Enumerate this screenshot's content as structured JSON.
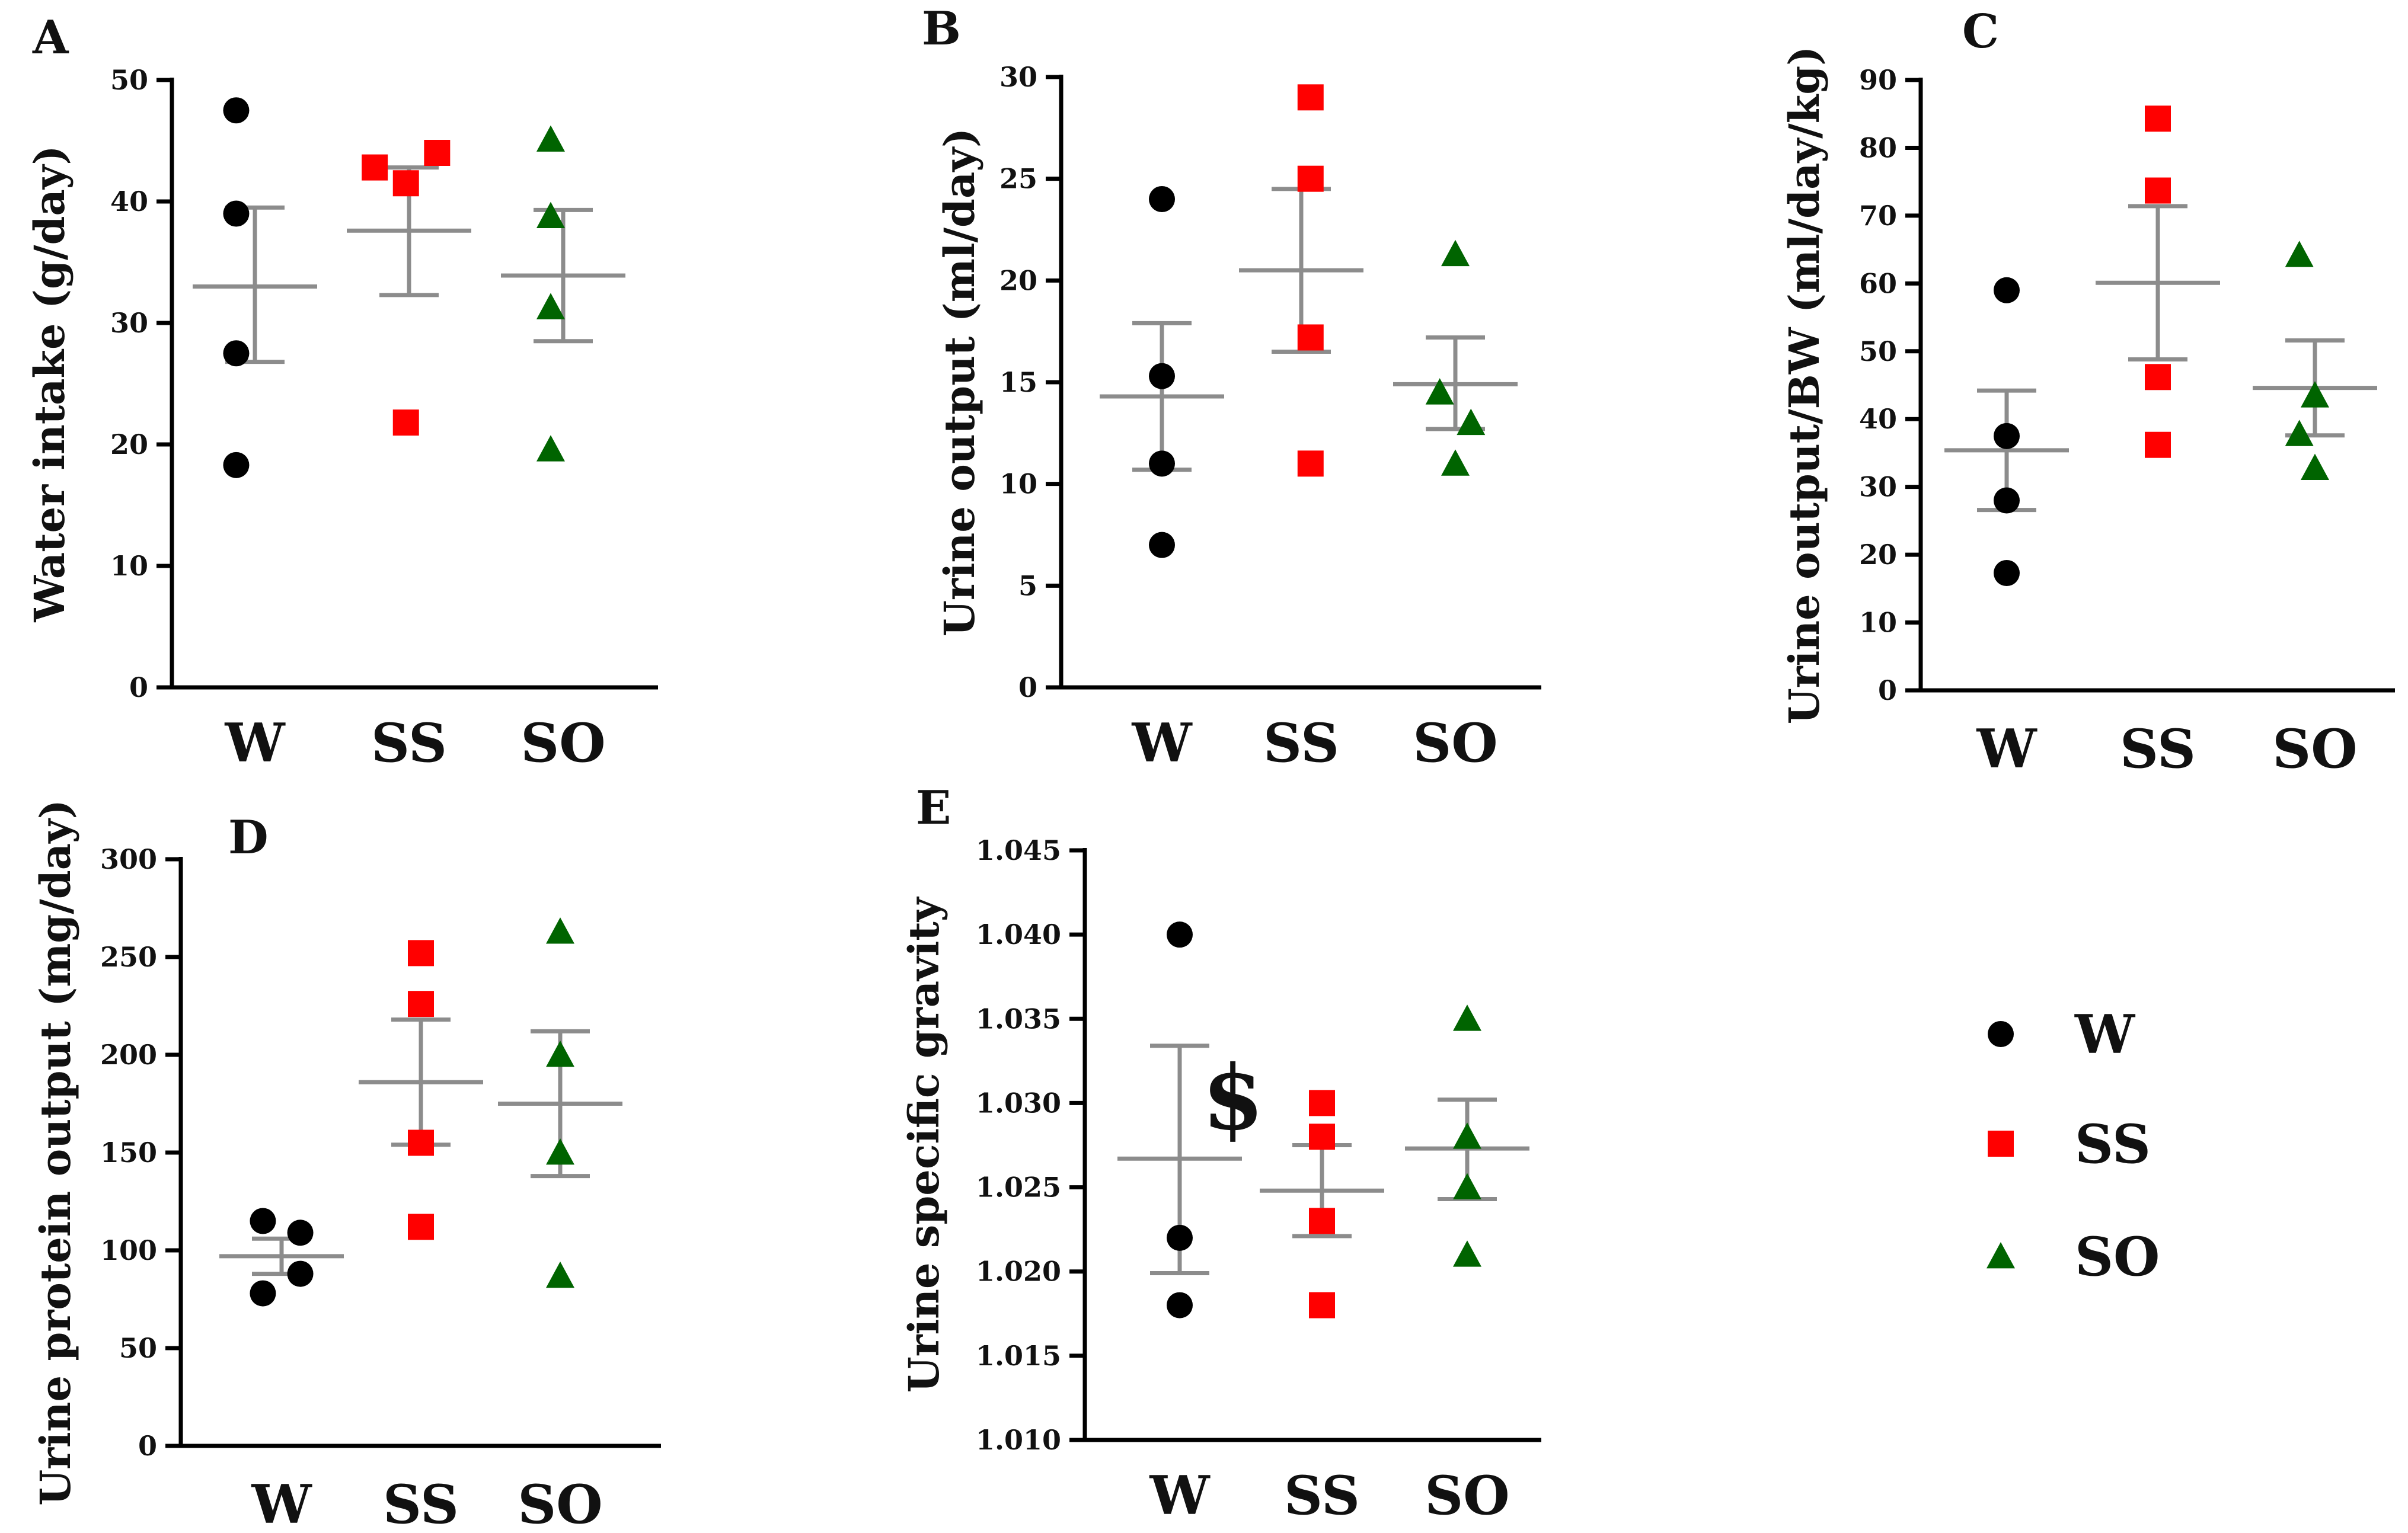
{
  "colors": {
    "W": "#000000",
    "SS": "#ff0000",
    "SO": "#006400",
    "error_bar": "#8c8c8c",
    "axis": "#000000"
  },
  "legend": {
    "entries": [
      {
        "key": "W",
        "label": "W",
        "marker": "circle"
      },
      {
        "key": "SS",
        "label": "SS",
        "marker": "square"
      },
      {
        "key": "SO",
        "label": "SO",
        "marker": "triangle"
      }
    ]
  },
  "chart_data": [
    {
      "panel": "A",
      "type": "scatter",
      "ylabel": "Water intake (g/day)",
      "ylim": [
        0,
        50
      ],
      "yticks": [
        0,
        10,
        20,
        30,
        40,
        50
      ],
      "ytick_labels": [
        "0",
        "10",
        "20",
        "30",
        "40",
        "50"
      ],
      "categories": [
        "W",
        "SS",
        "SO"
      ],
      "series": [
        {
          "name": "W",
          "marker": "circle",
          "points": [
            [
              -0.12,
              47.5
            ],
            [
              -0.12,
              39
            ],
            [
              -0.12,
              27.5
            ],
            [
              -0.12,
              18.3
            ]
          ],
          "mean": 33.0,
          "sem": [
            26.8,
            39.5
          ]
        },
        {
          "name": "SS",
          "marker": "square",
          "points": [
            [
              -0.22,
              42.8
            ],
            [
              -0.02,
              41.5
            ],
            [
              0.18,
              44
            ],
            [
              -0.02,
              21.8
            ]
          ],
          "mean": 37.6,
          "sem": [
            32.3,
            42.8
          ]
        },
        {
          "name": "SO",
          "marker": "triangle",
          "points": [
            [
              -0.08,
              45.1
            ],
            [
              -0.08,
              38.8
            ],
            [
              -0.08,
              31.3
            ],
            [
              -0.08,
              19.6
            ]
          ],
          "mean": 33.9,
          "sem": [
            28.5,
            39.3
          ]
        }
      ]
    },
    {
      "panel": "B",
      "type": "scatter",
      "ylabel": "Urine output (ml/day)",
      "ylim": [
        0,
        30
      ],
      "yticks": [
        0,
        5,
        10,
        15,
        20,
        25,
        30
      ],
      "ytick_labels": [
        "0",
        "5",
        "10",
        "15",
        "20",
        "25",
        "30"
      ],
      "categories": [
        "W",
        "SS",
        "SO"
      ],
      "series": [
        {
          "name": "W",
          "marker": "circle",
          "points": [
            [
              0.0,
              24
            ],
            [
              0.0,
              15.3
            ],
            [
              0.0,
              11
            ],
            [
              0.0,
              7
            ]
          ],
          "mean": 14.3,
          "sem": [
            10.7,
            17.9
          ]
        },
        {
          "name": "SS",
          "marker": "square",
          "points": [
            [
              0.06,
              29
            ],
            [
              0.06,
              25
            ],
            [
              0.06,
              17.2
            ],
            [
              0.06,
              11
            ]
          ],
          "mean": 20.5,
          "sem": [
            16.5,
            24.5
          ]
        },
        {
          "name": "SO",
          "marker": "triangle",
          "points": [
            [
              0.0,
              21.3
            ],
            [
              -0.1,
              14.5
            ],
            [
              0.1,
              13
            ],
            [
              0.0,
              11
            ]
          ],
          "mean": 14.9,
          "sem": [
            12.7,
            17.2
          ]
        }
      ]
    },
    {
      "panel": "C",
      "type": "scatter",
      "ylabel": "Urine output/BW (ml/day/kg)",
      "ylim": [
        0,
        90
      ],
      "yticks": [
        0,
        10,
        20,
        30,
        40,
        50,
        60,
        70,
        80,
        90
      ],
      "ytick_labels": [
        "0",
        "10",
        "20",
        "30",
        "40",
        "50",
        "60",
        "70",
        "80",
        "90"
      ],
      "categories": [
        "W",
        "SS",
        "SO"
      ],
      "series": [
        {
          "name": "W",
          "marker": "circle",
          "points": [
            [
              0.0,
              59
            ],
            [
              0.0,
              37.5
            ],
            [
              0.0,
              28
            ],
            [
              0.0,
              17.3
            ]
          ],
          "mean": 35.4,
          "sem": [
            26.6,
            44.2
          ]
        },
        {
          "name": "SS",
          "marker": "square",
          "points": [
            [
              0.0,
              84.3
            ],
            [
              0.0,
              73.7
            ],
            [
              0.0,
              46.2
            ],
            [
              0.0,
              36.2
            ]
          ],
          "mean": 60.1,
          "sem": [
            48.8,
            71.4
          ]
        },
        {
          "name": "SO",
          "marker": "triangle",
          "points": [
            [
              -0.1,
              64.2
            ],
            [
              0.0,
              43.5
            ],
            [
              -0.1,
              37.8
            ],
            [
              0.0,
              32.8
            ]
          ],
          "mean": 44.6,
          "sem": [
            37.6,
            51.6
          ]
        }
      ]
    },
    {
      "panel": "D",
      "type": "scatter",
      "ylabel": "Urine protein output (mg/day)",
      "ylim": [
        0,
        300
      ],
      "yticks": [
        0,
        50,
        100,
        150,
        200,
        250,
        300
      ],
      "ytick_labels": [
        "0",
        "50",
        "100",
        "150",
        "200",
        "250",
        "300"
      ],
      "categories": [
        "W",
        "SS",
        "SO"
      ],
      "series": [
        {
          "name": "W",
          "marker": "circle",
          "points": [
            [
              -0.12,
              115
            ],
            [
              0.12,
              109
            ],
            [
              -0.12,
              78
            ],
            [
              0.12,
              88
            ]
          ],
          "mean": 97,
          "sem": [
            88,
            106
          ]
        },
        {
          "name": "SS",
          "marker": "square",
          "points": [
            [
              0.0,
              252
            ],
            [
              0.0,
              226
            ],
            [
              0.0,
              155
            ],
            [
              0.0,
              112
            ]
          ],
          "mean": 186,
          "sem": [
            154,
            218
          ]
        },
        {
          "name": "SO",
          "marker": "triangle",
          "points": [
            [
              0.0,
              263
            ],
            [
              0.0,
              200
            ],
            [
              0.0,
              150
            ],
            [
              0.0,
              87
            ]
          ],
          "mean": 175,
          "sem": [
            138,
            212
          ]
        }
      ]
    },
    {
      "panel": "E",
      "type": "scatter",
      "ylabel": "Urine specific gravity",
      "ylim": [
        1.01,
        1.045
      ],
      "yticks": [
        1.01,
        1.015,
        1.02,
        1.025,
        1.03,
        1.035,
        1.04,
        1.045
      ],
      "ytick_labels": [
        "1.010",
        "1.015",
        "1.020",
        "1.025",
        "1.030",
        "1.035",
        "1.040",
        "1.045"
      ],
      "categories": [
        "W",
        "SS",
        "SO"
      ],
      "annotation": "$",
      "series": [
        {
          "name": "W",
          "marker": "circle",
          "points": [
            [
              0.0,
              1.04
            ],
            [
              0.0,
              1.022
            ],
            [
              0.0,
              1.018
            ]
          ],
          "mean": 1.0267,
          "sem": [
            1.0199,
            1.0334
          ]
        },
        {
          "name": "SS",
          "marker": "square",
          "points": [
            [
              0.0,
              1.03
            ],
            [
              0.0,
              1.028
            ],
            [
              0.0,
              1.023
            ],
            [
              0.0,
              1.018
            ]
          ],
          "mean": 1.0248,
          "sem": [
            1.0221,
            1.0275
          ]
        },
        {
          "name": "SO",
          "marker": "triangle",
          "points": [
            [
              0.0,
              1.035
            ],
            [
              0.0,
              1.028
            ],
            [
              0.0,
              1.025
            ],
            [
              0.0,
              1.021
            ]
          ],
          "mean": 1.0273,
          "sem": [
            1.0243,
            1.0302
          ]
        }
      ]
    }
  ]
}
